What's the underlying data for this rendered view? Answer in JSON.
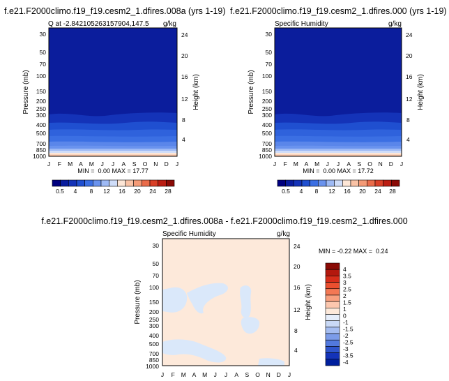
{
  "chart_data": [
    {
      "type": "heatmap",
      "title": "f.e21.F2000climo.f19_f19.cesm2_1.dfires.008a (yrs 1-19)",
      "left_label": "Q at -2.842105263157904,147.5",
      "right_label": "g/kg",
      "ylabel": "Pressure (mb)",
      "ylabel_right": "Height (km)",
      "x": [
        "J",
        "F",
        "M",
        "A",
        "M",
        "J",
        "J",
        "A",
        "S",
        "O",
        "N",
        "D",
        "J"
      ],
      "pressure_ticks": [
        30,
        50,
        70,
        100,
        150,
        200,
        250,
        300,
        400,
        500,
        700,
        850,
        1000
      ],
      "height_ticks": [
        4,
        8,
        12,
        16,
        20,
        24
      ],
      "ylim": [
        1000,
        25
      ],
      "stats": "MIN =  0.00 MAX = 17.77",
      "min": 0.0,
      "max": 17.77
    },
    {
      "type": "heatmap",
      "title": "f.e21.F2000climo.f19_f19.cesm2_1.dfires.000 (yrs 1-19)",
      "left_label": "Specific Humidity",
      "right_label": "g/kg",
      "ylabel": "Pressure (mb)",
      "ylabel_right": "Height (km)",
      "x": [
        "J",
        "F",
        "M",
        "A",
        "M",
        "J",
        "J",
        "A",
        "S",
        "O",
        "N",
        "D",
        "J"
      ],
      "pressure_ticks": [
        30,
        50,
        70,
        100,
        150,
        200,
        250,
        300,
        400,
        500,
        700,
        850,
        1000
      ],
      "height_ticks": [
        4,
        8,
        12,
        16,
        20,
        24
      ],
      "ylim": [
        1000,
        25
      ],
      "stats": "MIN =  0.00 MAX = 17.72",
      "min": 0.0,
      "max": 17.72
    },
    {
      "type": "heatmap",
      "title": "f.e21.F2000climo.f19_f19.cesm2_1.dfires.008a - f.e21.F2000climo.f19_f19.cesm2_1.dfires.000",
      "left_label": "Specific Humidity",
      "right_label": "g/kg",
      "ylabel": "Pressure (mb)",
      "ylabel_right": "Height (km)",
      "x": [
        "J",
        "F",
        "M",
        "A",
        "M",
        "J",
        "J",
        "A",
        "S",
        "O",
        "N",
        "D",
        "J"
      ],
      "pressure_ticks": [
        30,
        50,
        70,
        100,
        150,
        200,
        250,
        300,
        400,
        500,
        700,
        850,
        1000
      ],
      "height_ticks": [
        4,
        8,
        12,
        16,
        20,
        24
      ],
      "ylim": [
        1000,
        25
      ],
      "stats": "MIN = -0.22 MAX =  0.24",
      "min": -0.22,
      "max": 0.24
    }
  ],
  "colorbar_top": {
    "labels": [
      "0.5",
      "4",
      "8",
      "12",
      "16",
      "20",
      "24",
      "28"
    ],
    "colors": [
      "#00007f",
      "#0a1d9e",
      "#1433b8",
      "#1f4fd0",
      "#3b6fe3",
      "#6a93ee",
      "#9ebaf5",
      "#cfddf9",
      "#fde6d6",
      "#f9c2a5",
      "#f49a76",
      "#ea6c4a",
      "#d94027",
      "#bb1d12",
      "#8a0a05"
    ]
  },
  "colorbar_diff": {
    "labels": [
      "4",
      "3.5",
      "3",
      "2.5",
      "2",
      "1.5",
      "1",
      "0",
      "-1",
      "-1.5",
      "-2",
      "-2.5",
      "-3",
      "-3.5",
      "-4"
    ],
    "colors": [
      "#8a0a05",
      "#b3180e",
      "#d62d1a",
      "#ea4f2f",
      "#f37854",
      "#f8a07f",
      "#fcc7ae",
      "#fde9da",
      "#e6eefb",
      "#c9d9f6",
      "#a5bdf1",
      "#7c9ce9",
      "#5279de",
      "#2f55cc",
      "#1433b8",
      "#001f9e"
    ]
  },
  "colors": {
    "background_blue": "#0b1d9c",
    "diff_background": "#fde9da",
    "diff_patch": "#dae8fa"
  }
}
